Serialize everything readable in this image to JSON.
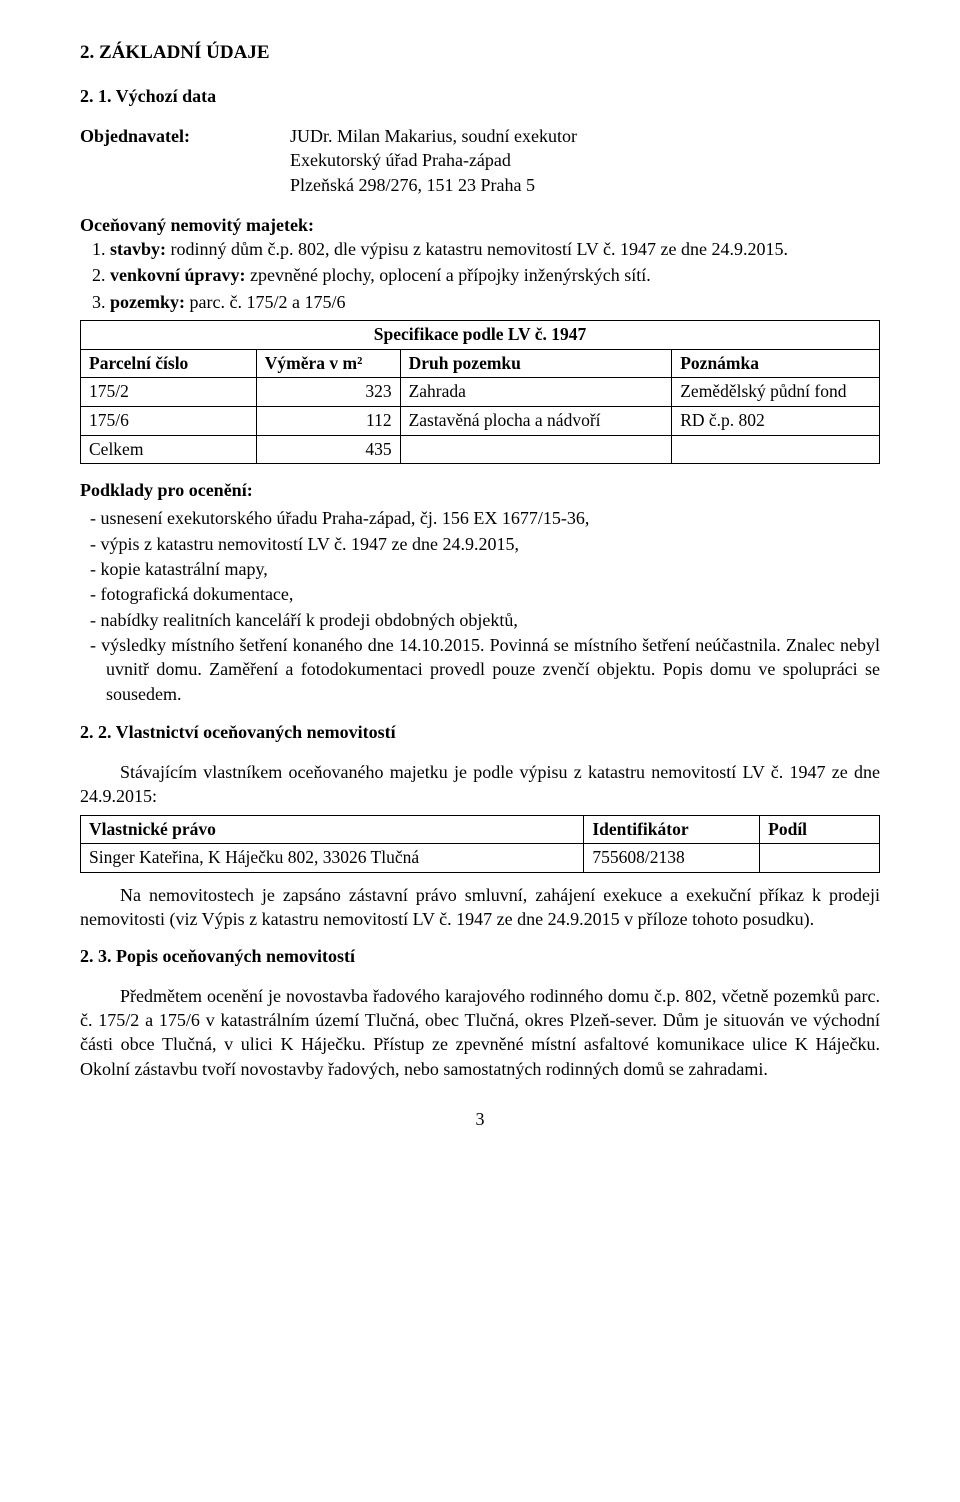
{
  "section2": {
    "heading": "2.  ZÁKLADNÍ ÚDAJE",
    "sub21": "2. 1.   Výchozí data",
    "objLabel": "Objednavatel:",
    "obj_l1": "JUDr. Milan Makarius, soudní exekutor",
    "obj_l2": "Exekutorský úřad Praha-západ",
    "obj_l3": "Plzeňská 298/276, 151 23 Praha 5",
    "ocelLabel": "Oceňovaný nemovitý majetek:",
    "li1_pre": "stavby: ",
    "li1_mid": "rodinný dům č.p. 802, dle výpisu z katastru nemovitostí LV č. 1947 ze dne 24.9.2015.",
    "li2_pre": "venkovní úpravy: ",
    "li2_mid": "zpevněné plochy, oplocení a přípojky inženýrských sítí.",
    "li3_pre": "pozemky: ",
    "li3_mid": "parc. č. 175/2 a 175/6",
    "spec": {
      "title": "Specifikace  podle LV č. 1947",
      "cols": [
        "Parcelní číslo",
        "Výměra v m²",
        "Druh pozemku",
        "Poznámka"
      ],
      "rows": [
        [
          "175/2",
          "323",
          "Zahrada",
          "Zemědělský půdní fond"
        ],
        [
          "175/6",
          "112",
          "Zastavěná plocha a nádvoří",
          "RD č.p. 802"
        ],
        [
          "Celkem",
          "435",
          "",
          ""
        ]
      ],
      "colw": [
        "22%",
        "18%",
        "34%",
        "26%"
      ]
    },
    "podklady_h": "Podklady pro ocenění:",
    "podklady": [
      "usnesení exekutorského úřadu Praha-západ, čj. 156 EX 1677/15-36,",
      "výpis z katastru nemovitostí LV č. 1947  ze dne 24.9.2015,",
      "kopie katastrální mapy,",
      "fotografická dokumentace,",
      "nabídky realitních kanceláří k prodeji obdobných objektů,",
      "výsledky místního šetření konaného dne 14.10.2015. Povinná se místního šetření neúčastnila. Znalec nebyl uvnitř domu. Zaměření a fotodokumentaci provedl pouze zvenčí objektu. Popis domu ve spolupráci se sousedem."
    ],
    "sub22": "2. 2.   Vlastnictví oceňovaných nemovitostí",
    "vlast_intro": "Stávajícím vlastníkem oceňovaného majetku je podle výpisu z katastru nemovitostí LV č. 1947 ze dne 24.9.2015:",
    "own": {
      "cols": [
        "Vlastnické právo",
        "Identifikátor",
        "Podíl"
      ],
      "rows": [
        [
          "Singer Kateřina, K Háječku 802, 33026 Tlučná",
          "755608/2138",
          ""
        ]
      ],
      "colw": [
        "63%",
        "22%",
        "15%"
      ]
    },
    "zastav": "Na nemovitostech je zapsáno zástavní právo smluvní, zahájení exekuce a exekuční příkaz k prodeji nemovitosti (viz Výpis z katastru nemovitostí LV č. 1947 ze dne 24.9.2015 v příloze tohoto posudku).",
    "sub23": "2. 3.    Popis oceňovaných nemovitostí",
    "popis": "Předmětem ocenění je novostavba řadového karajového rodinného domu č.p. 802, včetně pozemků parc. č. 175/2 a 175/6 v katastrálním území Tlučná, obec Tlučná, okres Plzeň-sever. Dům je situován ve východní části obce Tlučná, v ulici K Háječku. Přístup ze zpevněné místní asfaltové komunikace ulice K Háječku. Okolní zástavbu tvoří novostavby řadových, nebo samostatných rodinných domů se zahradami.",
    "pagenum": "3"
  }
}
